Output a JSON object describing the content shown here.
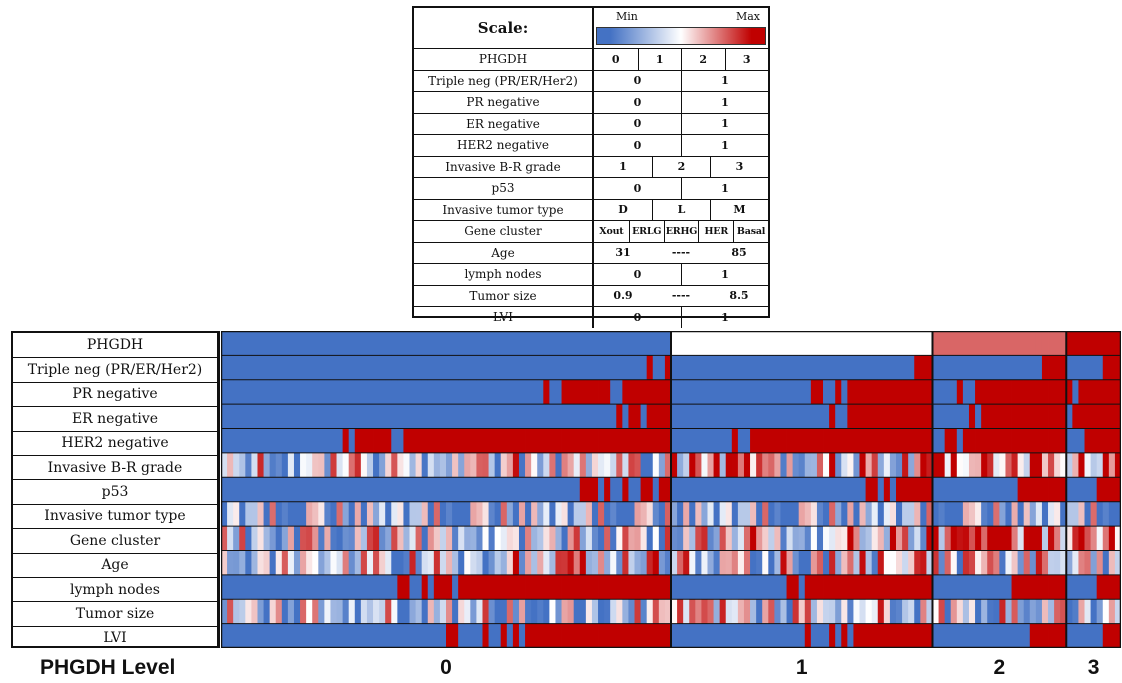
{
  "scale": {
    "title": "Scale:",
    "min_label": "Min",
    "max_label": "Max",
    "colors": {
      "min": "#4472c4",
      "mid": "#ffffff",
      "max": "#c00000"
    },
    "rows": [
      {
        "name": "PHGDH",
        "values": [
          "0",
          "1",
          "2",
          "3"
        ]
      },
      {
        "name": "Triple neg (PR/ER/Her2)",
        "values": [
          "0",
          "1"
        ]
      },
      {
        "name": "PR negative",
        "values": [
          "0",
          "1"
        ]
      },
      {
        "name": "ER negative",
        "values": [
          "0",
          "1"
        ]
      },
      {
        "name": "HER2 negative",
        "values": [
          "0",
          "1"
        ]
      },
      {
        "name": "Invasive B-R grade",
        "values": [
          "1",
          "2",
          "3"
        ]
      },
      {
        "name": "p53",
        "values": [
          "0",
          "1"
        ]
      },
      {
        "name": "Invasive tumor type",
        "values": [
          "D",
          "L",
          "M"
        ]
      },
      {
        "name": "Gene cluster",
        "values": [
          "Xout",
          "ERLG",
          "ERHG",
          "HER",
          "Basal"
        ]
      },
      {
        "name": "Age",
        "values": [
          "31",
          "----",
          "85"
        ]
      },
      {
        "name": "lymph nodes",
        "values": [
          "0",
          "1"
        ]
      },
      {
        "name": "Tumor size",
        "values": [
          "0.9",
          "----",
          "8.5"
        ]
      },
      {
        "name": "LVI",
        "values": [
          "0",
          "1"
        ]
      }
    ]
  },
  "chart_data": {
    "type": "heatmap",
    "xlabel": "PHGDH Level",
    "groups": [
      {
        "label": "0",
        "count": 74
      },
      {
        "label": "1",
        "count": 43
      },
      {
        "label": "2",
        "count": 22
      },
      {
        "label": "3",
        "count": 9
      }
    ],
    "rows": [
      "PHGDH",
      "Triple neg (PR/ER/Her2)",
      "PR negative",
      "ER negative",
      "HER2 negative",
      "Invasive B-R grade",
      "p53",
      "Invasive tumor type",
      "Gene cluster",
      "Age",
      "lymph nodes",
      "Tumor size",
      "LVI"
    ],
    "group_values": {
      "PHGDH": [
        0,
        0.5,
        0.8,
        1
      ],
      "Triple neg (PR/ER/Her2)": [
        0.03,
        0.07,
        0.14,
        0.33
      ],
      "PR negative": [
        0.22,
        0.4,
        0.75,
        0.89
      ],
      "ER negative": [
        0.1,
        0.3,
        0.7,
        0.89
      ],
      "HER2 negative": [
        0.7,
        0.75,
        0.84,
        0.78
      ],
      "Invasive B-R grade": [
        0.45,
        0.58,
        0.8,
        0.85
      ],
      "p53": [
        0.12,
        0.25,
        0.5,
        0.6
      ],
      "Invasive tumor type": [
        0.35,
        0.33,
        0.3,
        0.3
      ],
      "Gene cluster": [
        0.4,
        0.55,
        0.85,
        0.85
      ],
      "Age": [
        0.5,
        0.45,
        0.45,
        0.45
      ],
      "lymph nodes": [
        0.55,
        0.5,
        0.45,
        0.5
      ],
      "Tumor size": [
        0.35,
        0.42,
        0.45,
        0.45
      ],
      "LVI": [
        0.4,
        0.4,
        0.3,
        0.35
      ]
    },
    "value_range": [
      0,
      1
    ]
  }
}
